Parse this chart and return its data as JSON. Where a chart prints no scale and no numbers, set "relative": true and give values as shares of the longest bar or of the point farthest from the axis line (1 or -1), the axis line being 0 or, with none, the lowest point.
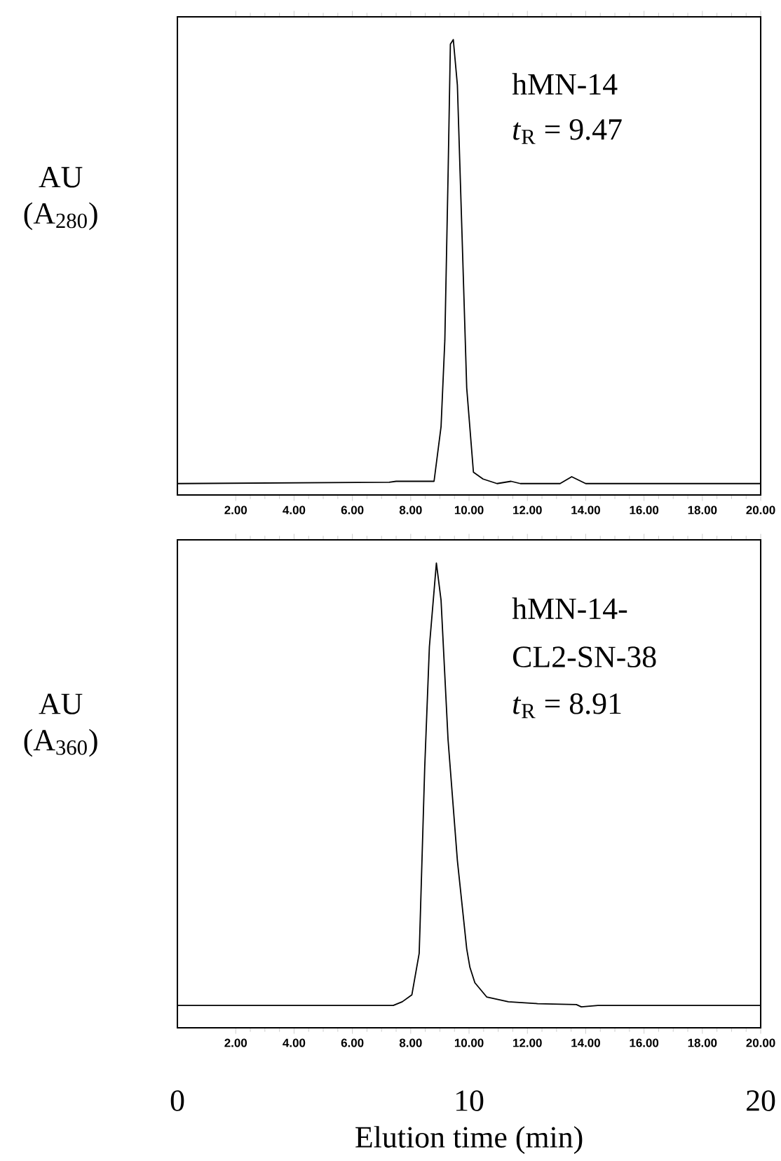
{
  "chart_data": [
    {
      "type": "line",
      "relative": true,
      "ylabel": "AU (A$_{280}$)",
      "xlim": [
        0,
        20
      ],
      "xticks": [
        {
          "value": 2,
          "label": "2.00"
        },
        {
          "value": 4,
          "label": "4.00"
        },
        {
          "value": 6,
          "label": "6.00"
        },
        {
          "value": 8,
          "label": "8.00"
        },
        {
          "value": 10,
          "label": "10.00"
        },
        {
          "value": 12,
          "label": "12.00"
        },
        {
          "value": 14,
          "label": "14.00"
        },
        {
          "value": 16,
          "label": "16.00"
        },
        {
          "value": 18,
          "label": "18.00"
        },
        {
          "value": 20,
          "label": "20.00"
        }
      ],
      "annotations": [
        "hMN-14",
        "*t*$_{R}$ = 9.47"
      ],
      "series": [
        {
          "color": "#000000",
          "x": [
            0,
            7.26,
            7.5,
            8.0,
            8.8,
            9.04,
            9.17,
            9.28,
            9.36,
            9.46,
            9.6,
            9.76,
            9.92,
            10.15,
            10.48,
            10.96,
            11.44,
            11.76,
            13.12,
            13.52,
            14.0,
            20
          ],
          "values": [
            0.025,
            0.028,
            0.03,
            0.03,
            0.03,
            0.15,
            0.34,
            0.7,
            0.99,
            1.0,
            0.9,
            0.57,
            0.235,
            0.05,
            0.035,
            0.025,
            0.03,
            0.025,
            0.025,
            0.04,
            0.025,
            0.025
          ]
        }
      ]
    },
    {
      "type": "line",
      "relative": true,
      "ylabel": "AU (A$_{360}$)",
      "xlim": [
        0,
        20
      ],
      "xticks": [
        {
          "value": 2,
          "label": "2.00"
        },
        {
          "value": 4,
          "label": "4.00"
        },
        {
          "value": 6,
          "label": "6.00"
        },
        {
          "value": 8,
          "label": "8.00"
        },
        {
          "value": 10,
          "label": "10.00"
        },
        {
          "value": 12,
          "label": "12.00"
        },
        {
          "value": 14,
          "label": "14.00"
        },
        {
          "value": 16,
          "label": "16.00"
        },
        {
          "value": 18,
          "label": "18.00"
        },
        {
          "value": 20,
          "label": "20.00"
        }
      ],
      "x2lim": [
        0,
        20
      ],
      "x2ticks": [
        0,
        10,
        20
      ],
      "x2label": "Elution time (min)",
      "annotations": [
        "hMN-14-",
        "CL2-SN-38",
        "*t*$_{R}$ = 8.91"
      ],
      "series": [
        {
          "color": "#000000",
          "x": [
            0,
            7.4,
            7.71,
            8.04,
            8.29,
            8.32,
            8.48,
            8.64,
            8.88,
            9.04,
            9.28,
            9.6,
            9.92,
            10.03,
            10.2,
            10.61,
            11.35,
            12.35,
            13.68,
            13.85,
            14.42,
            20
          ],
          "values": [
            0.048,
            0.048,
            0.056,
            0.071,
            0.16,
            0.22,
            0.56,
            0.82,
            1.0,
            0.92,
            0.62,
            0.36,
            0.17,
            0.13,
            0.097,
            0.066,
            0.056,
            0.052,
            0.05,
            0.045,
            0.048,
            0.048
          ]
        }
      ]
    }
  ]
}
